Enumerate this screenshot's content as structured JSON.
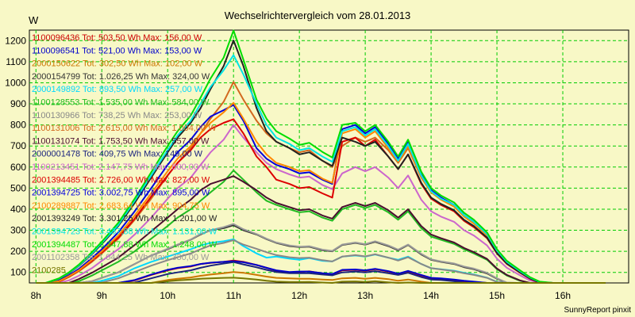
{
  "chart_data": {
    "type": "line",
    "title": "Wechselrichtervergleich vom 28.01.2013",
    "ylabel": "W",
    "ylim": [
      50,
      1250
    ],
    "yticks": [
      100,
      200,
      300,
      400,
      500,
      600,
      700,
      800,
      900,
      1000,
      1100,
      1200
    ],
    "xlim": [
      7.9,
      17.0
    ],
    "xticks": [
      8,
      9,
      10,
      11,
      12,
      13,
      14,
      15,
      16
    ],
    "xtick_labels": [
      "8h",
      "9h",
      "10h",
      "11h",
      "12h",
      "13h",
      "14h",
      "15h",
      "16h"
    ],
    "grid": true,
    "legend_position": "top-left inside",
    "x": [
      8.0,
      8.15,
      8.35,
      8.5,
      8.65,
      8.85,
      9.0,
      9.25,
      9.5,
      9.75,
      10.0,
      10.15,
      10.35,
      10.5,
      10.65,
      10.85,
      11.0,
      11.15,
      11.35,
      11.5,
      11.65,
      11.85,
      12.0,
      12.15,
      12.35,
      12.5,
      12.65,
      12.85,
      13.0,
      13.15,
      13.35,
      13.5,
      13.65,
      13.85,
      14.0,
      14.15,
      14.35,
      14.5,
      14.65,
      14.85,
      15.0,
      15.15,
      15.35,
      15.5,
      15.65,
      15.85,
      16.0,
      16.15,
      16.35,
      16.5,
      16.65
    ],
    "series": [
      {
        "name": "1100096436 Tot: 503,50 Wh Max: 156,00 W",
        "color": "#cc0000",
        "values": [
          0,
          5,
          10,
          12,
          14,
          22,
          28,
          40,
          62,
          88,
          110,
          120,
          128,
          140,
          145,
          150,
          156,
          150,
          135,
          122,
          108,
          100,
          102,
          105,
          95,
          90,
          110,
          112,
          108,
          115,
          104,
          92,
          105,
          85,
          72,
          70,
          64,
          58,
          55,
          45,
          32,
          22,
          15,
          12,
          10,
          5,
          0,
          0,
          0,
          0,
          0
        ]
      },
      {
        "name": "1100096541 Tot: 521,00 Wh Max: 153,00 W",
        "color": "#0000cc",
        "values": [
          0,
          5,
          10,
          12,
          15,
          22,
          30,
          42,
          64,
          90,
          112,
          122,
          130,
          140,
          146,
          150,
          153,
          148,
          135,
          122,
          110,
          102,
          104,
          104,
          96,
          92,
          112,
          114,
          110,
          117,
          106,
          94,
          107,
          88,
          74,
          72,
          66,
          60,
          56,
          46,
          33,
          23,
          15,
          12,
          10,
          5,
          0,
          0,
          0,
          0,
          0
        ]
      },
      {
        "name": "2000150622 Tot: 302,50 Wh Max: 102,00 W",
        "color": "#cc7700",
        "values": [
          0,
          3,
          5,
          6,
          8,
          12,
          18,
          24,
          36,
          50,
          64,
          70,
          76,
          84,
          90,
          96,
          102,
          98,
          88,
          80,
          74,
          72,
          70,
          70,
          66,
          64,
          72,
          74,
          70,
          74,
          68,
          60,
          66,
          56,
          48,
          46,
          42,
          38,
          34,
          28,
          20,
          14,
          10,
          8,
          6,
          4,
          0,
          0,
          0,
          0,
          0
        ]
      },
      {
        "name": "2000154799 Tot: 1.026,25 Wh Max: 324,00 W",
        "color": "#333333",
        "values": [
          0,
          10,
          22,
          30,
          40,
          58,
          74,
          100,
          140,
          180,
          210,
          230,
          255,
          280,
          300,
          310,
          324,
          300,
          280,
          258,
          240,
          225,
          220,
          222,
          205,
          200,
          230,
          240,
          232,
          245,
          225,
          205,
          230,
          185,
          160,
          150,
          140,
          125,
          115,
          95,
          70,
          50,
          35,
          25,
          18,
          10,
          0,
          0,
          0,
          0,
          0
        ]
      },
      {
        "name": "2000149892 Tot: 893,50 Wh Max: 257,00 W",
        "color": "#00d8ff",
        "values": [
          0,
          8,
          18,
          26,
          34,
          48,
          60,
          82,
          120,
          150,
          175,
          190,
          210,
          228,
          240,
          248,
          257,
          225,
          190,
          170,
          175,
          165,
          160,
          168,
          155,
          152,
          175,
          180,
          175,
          185,
          170,
          160,
          175,
          140,
          120,
          115,
          108,
          98,
          90,
          75,
          55,
          40,
          28,
          20,
          14,
          8,
          0,
          0,
          0,
          0,
          0
        ]
      },
      {
        "name": "1100128553 Tot: 1.535,00 Wh Max: 584,00 W",
        "color": "#22bb22",
        "values": [
          0,
          14,
          30,
          42,
          58,
          85,
          110,
          150,
          200,
          260,
          320,
          360,
          400,
          440,
          480,
          530,
          584,
          540,
          480,
          440,
          420,
          400,
          385,
          390,
          360,
          345,
          400,
          420,
          405,
          420,
          385,
          350,
          390,
          310,
          270,
          255,
          235,
          210,
          190,
          160,
          115,
          85,
          60,
          42,
          30,
          16,
          0,
          0,
          0,
          0,
          0
        ]
      },
      {
        "name": "1100130966 Tot: 738,25 Wh Max: 253,00 W",
        "color": "#888888",
        "values": [
          0,
          6,
          14,
          20,
          28,
          40,
          52,
          72,
          102,
          132,
          158,
          172,
          190,
          210,
          228,
          240,
          253,
          232,
          212,
          196,
          182,
          172,
          168,
          170,
          158,
          152,
          175,
          182,
          176,
          186,
          170,
          156,
          172,
          140,
          120,
          114,
          106,
          96,
          88,
          74,
          54,
          38,
          26,
          20,
          14,
          8,
          0,
          0,
          0,
          0,
          0
        ]
      },
      {
        "name": "1100131006 Tot: 2.615,00 Wh Max: 1.004,00 W",
        "color": "#d2691e",
        "values": [
          0,
          25,
          55,
          78,
          105,
          150,
          190,
          260,
          350,
          450,
          560,
          620,
          690,
          760,
          830,
          910,
          1004,
          920,
          820,
          760,
          720,
          690,
          670,
          680,
          630,
          600,
          700,
          740,
          720,
          740,
          680,
          620,
          690,
          550,
          480,
          450,
          420,
          370,
          340,
          280,
          200,
          150,
          105,
          75,
          52,
          28,
          0,
          0,
          0,
          0,
          0
        ]
      },
      {
        "name": "1100131074 Tot: 1.753,50 Wh Max: 557,00 W",
        "color": "#4b0f2f",
        "values": [
          0,
          16,
          36,
          50,
          68,
          98,
          125,
          170,
          230,
          295,
          360,
          400,
          445,
          490,
          520,
          540,
          557,
          530,
          490,
          455,
          430,
          410,
          395,
          400,
          370,
          355,
          410,
          430,
          415,
          430,
          395,
          360,
          400,
          320,
          280,
          262,
          242,
          216,
          196,
          164,
          118,
          88,
          62,
          44,
          32,
          17,
          0,
          0,
          0,
          0,
          0
        ]
      },
      {
        "name": "2000001478 Tot: 409,75 Wh Max: 149,00 W",
        "color": "#1a237e",
        "values": [
          0,
          4,
          8,
          10,
          12,
          18,
          24,
          34,
          52,
          72,
          92,
          100,
          110,
          122,
          132,
          142,
          149,
          138,
          124,
          112,
          102,
          96,
          96,
          96,
          90,
          86,
          100,
          104,
          100,
          106,
          96,
          88,
          98,
          78,
          66,
          64,
          58,
          52,
          48,
          40,
          28,
          20,
          14,
          10,
          8,
          4,
          0,
          0,
          0,
          0,
          0
        ]
      },
      {
        "name": "1100213451 Tot: 2.147,75 Wh Max: 800,00 W",
        "color": "#cc66cc",
        "values": [
          0,
          20,
          44,
          62,
          84,
          120,
          155,
          210,
          280,
          360,
          450,
          500,
          550,
          610,
          670,
          730,
          800,
          740,
          670,
          620,
          590,
          565,
          550,
          555,
          515,
          495,
          570,
          600,
          580,
          600,
          550,
          500,
          560,
          445,
          390,
          365,
          340,
          300,
          275,
          228,
          165,
          122,
          86,
          62,
          44,
          23,
          0,
          0,
          0,
          0,
          0
        ]
      },
      {
        "name": "2001394485 Tot: 2.726,00 Wh Max: 827,00 W",
        "color": "#dd0000",
        "values": [
          0,
          26,
          56,
          80,
          108,
          155,
          195,
          265,
          355,
          460,
          560,
          620,
          680,
          740,
          780,
          810,
          827,
          760,
          650,
          600,
          540,
          520,
          500,
          505,
          475,
          455,
          720,
          740,
          700,
          730,
          650,
          590,
          660,
          520,
          450,
          420,
          390,
          345,
          315,
          262,
          190,
          140,
          98,
          70,
          50,
          26,
          0,
          0,
          0,
          0,
          0
        ]
      },
      {
        "name": "2001394725 Tot: 3.002,75 Wh Max: 895,00 W",
        "color": "#0000dd",
        "values": [
          0,
          28,
          60,
          86,
          116,
          168,
          210,
          290,
          390,
          500,
          610,
          670,
          730,
          790,
          840,
          870,
          895,
          820,
          690,
          640,
          610,
          590,
          570,
          575,
          540,
          520,
          780,
          800,
          760,
          790,
          710,
          640,
          720,
          570,
          490,
          455,
          420,
          372,
          340,
          282,
          205,
          150,
          106,
          76,
          54,
          28,
          0,
          0,
          0,
          0,
          0
        ]
      },
      {
        "name": "2100289887 Tot: 2.683,64 Wh Max: 904,75 W",
        "color": "#ff8800",
        "values": [
          0,
          27,
          58,
          82,
          110,
          160,
          200,
          275,
          370,
          475,
          580,
          640,
          700,
          760,
          810,
          860,
          905,
          830,
          720,
          660,
          620,
          600,
          580,
          585,
          545,
          525,
          760,
          780,
          740,
          770,
          690,
          625,
          700,
          555,
          480,
          445,
          412,
          365,
          332,
          276,
          200,
          147,
          104,
          74,
          53,
          27,
          0,
          0,
          0,
          0,
          0
        ]
      },
      {
        "name": "2001393249 Tot: 3.301,25 Wh Max: 1.201,00 W",
        "color": "#222222",
        "values": [
          0,
          32,
          68,
          96,
          130,
          186,
          235,
          320,
          430,
          550,
          670,
          740,
          810,
          880,
          970,
          1080,
          1201,
          1080,
          880,
          770,
          720,
          690,
          660,
          670,
          630,
          605,
          740,
          720,
          700,
          720,
          650,
          590,
          660,
          525,
          455,
          425,
          395,
          350,
          320,
          265,
          192,
          142,
          100,
          72,
          51,
          27,
          0,
          0,
          0,
          0,
          0
        ]
      },
      {
        "name": "2001394723 Tot: 3.437,88 Wh Max: 1.131,00 W",
        "color": "#00e5e5",
        "values": [
          0,
          33,
          70,
          98,
          132,
          190,
          240,
          325,
          440,
          560,
          680,
          750,
          820,
          900,
          980,
          1060,
          1131,
          1040,
          900,
          800,
          740,
          710,
          680,
          690,
          650,
          625,
          770,
          790,
          750,
          780,
          700,
          630,
          710,
          560,
          485,
          450,
          420,
          372,
          340,
          282,
          204,
          150,
          106,
          76,
          54,
          28,
          0,
          0,
          0,
          0,
          0
        ]
      },
      {
        "name": "2001394487 Tot: 3.347,88 Wh Max: 1.248,00 W",
        "color": "#00dd00",
        "values": [
          0,
          34,
          72,
          100,
          136,
          196,
          246,
          335,
          450,
          575,
          700,
          770,
          845,
          930,
          1020,
          1120,
          1248,
          1110,
          920,
          830,
          770,
          735,
          705,
          715,
          672,
          645,
          800,
          810,
          770,
          800,
          720,
          650,
          730,
          578,
          500,
          465,
          432,
          383,
          350,
          290,
          210,
          155,
          110,
          78,
          56,
          29,
          0,
          0,
          0,
          0,
          0
        ]
      },
      {
        "name": "2001102358 Tot: 1.044,25 Wh Max: 330,00 W",
        "color": "#999999",
        "values": [
          0,
          10,
          22,
          30,
          40,
          58,
          74,
          100,
          140,
          180,
          212,
          232,
          256,
          282,
          300,
          315,
          330,
          305,
          282,
          260,
          242,
          228,
          222,
          224,
          208,
          202,
          232,
          242,
          234,
          248,
          228,
          208,
          232,
          188,
          162,
          152,
          142,
          128,
          118,
          98,
          72,
          52,
          36,
          26,
          18,
          10,
          0,
          0,
          0,
          0,
          0
        ]
      },
      {
        "name": "2100285",
        "color": "#777700",
        "values": [
          0,
          3,
          6,
          8,
          10,
          14,
          18,
          25,
          36,
          48,
          58,
          62,
          66,
          70,
          72,
          74,
          75,
          72,
          66,
          60,
          56,
          54,
          54,
          55,
          52,
          50,
          56,
          57,
          55,
          58,
          53,
          48,
          52,
          44,
          38,
          36,
          34,
          30,
          28,
          24,
          18,
          14,
          10,
          8,
          6,
          3,
          0,
          0,
          0,
          0,
          0
        ]
      }
    ]
  },
  "footer": "SunnyReport pinxit"
}
